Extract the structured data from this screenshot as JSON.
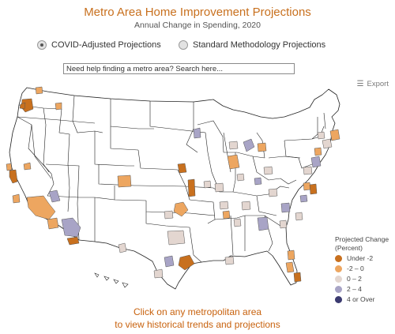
{
  "header": {
    "title": "Metro Area Home Improvement Projections",
    "subtitle": "Annual Change in Spending, 2020"
  },
  "methodology": {
    "options": [
      {
        "label": "COVID-Adjusted Projections",
        "selected": true
      },
      {
        "label": "Standard Methodology Projections",
        "selected": false
      }
    ]
  },
  "search": {
    "placeholder": "Need help finding a metro area? Search here..."
  },
  "export": {
    "label": "Export",
    "icon": "menu-icon"
  },
  "legend": {
    "title_line1": "Projected Change",
    "title_line2": "(Percent)",
    "items": [
      {
        "label": "Under -2",
        "color": "#c8701e"
      },
      {
        "label": "-2 – 0",
        "color": "#eda660"
      },
      {
        "label": "0 – 2",
        "color": "#e3d6d0"
      },
      {
        "label": "2 – 4",
        "color": "#a8a4c6"
      },
      {
        "label": "4 or Over",
        "color": "#3b3a70"
      }
    ]
  },
  "call_to_action": {
    "line1": "Click on any metropolitan area",
    "line2": "to view historical trends and projections"
  },
  "colors": {
    "accent": "#c8701e",
    "map_land": "#ffffff",
    "map_border": "#222222"
  }
}
